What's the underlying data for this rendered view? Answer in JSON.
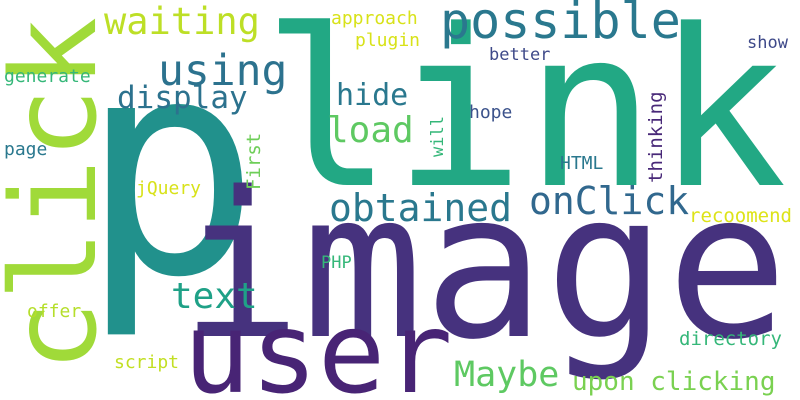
{
  "words": [
    "p",
    "link",
    "image",
    "user",
    "click",
    "possible",
    "waiting",
    "using",
    "display",
    "hide",
    "load",
    "obtained",
    "onClick",
    "text",
    "Maybe",
    "upon clicking",
    "directory",
    "recoomend",
    "show",
    "better",
    "approach",
    "plugin",
    "generate",
    "page",
    "hope",
    "will",
    "First",
    "thinking",
    "HTML",
    "jQuery",
    "PHP",
    "offer",
    "script"
  ]
}
